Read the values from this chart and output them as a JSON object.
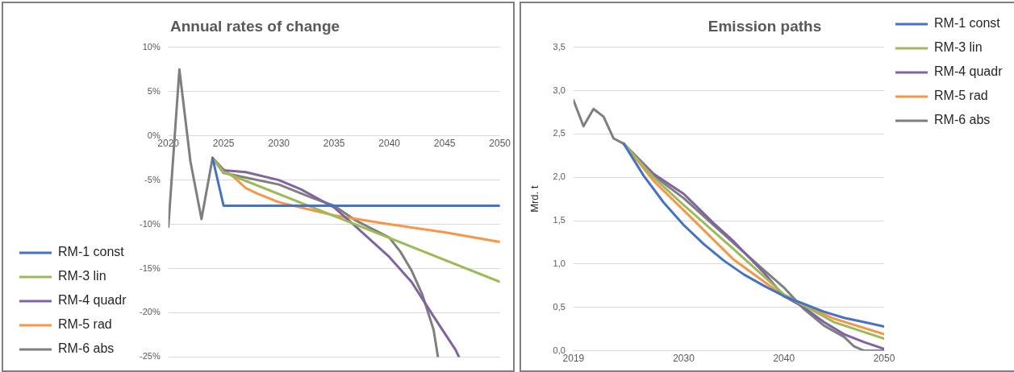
{
  "chart_data": [
    {
      "type": "line",
      "title": "Annual rates of change",
      "xlim": [
        2020,
        2050
      ],
      "xticks": [
        2020,
        2025,
        2030,
        2035,
        2040,
        2045,
        2050
      ],
      "ylim": [
        -25,
        10
      ],
      "yticks": [
        {
          "value": -25,
          "label": "-25%"
        },
        {
          "value": -20,
          "label": "-20%"
        },
        {
          "value": -15,
          "label": "-15%"
        },
        {
          "value": -10,
          "label": "-10%"
        },
        {
          "value": -5,
          "label": "-5%"
        },
        {
          "value": 0,
          "label": "0%"
        },
        {
          "value": 5,
          "label": "5%"
        },
        {
          "value": 10,
          "label": "10%"
        }
      ],
      "grid": "y",
      "legend": "bottom left",
      "marker": "none",
      "line_style": "solid",
      "series": [
        {
          "name": "RM-1 const",
          "color": "#4472c4",
          "x": [
            2024,
            2025,
            2030,
            2035,
            2040,
            2045,
            2050
          ],
          "values": [
            -2.5,
            -7.9,
            -7.9,
            -7.9,
            -7.9,
            -7.9,
            -7.9
          ]
        },
        {
          "name": "RM-3 lin",
          "color": "#9bbb59",
          "x": [
            2024,
            2025,
            2050
          ],
          "values": [
            -2.5,
            -4.1,
            -16.5
          ]
        },
        {
          "name": "RM-4 quadr",
          "color": "#8064a2",
          "x": [
            2024,
            2025,
            2027,
            2030,
            2032,
            2035,
            2037,
            2040,
            2042,
            2044,
            2046,
            2046.3
          ],
          "values": [
            -2.5,
            -3.9,
            -4.1,
            -5.0,
            -6.05,
            -8.1,
            -10.3,
            -13.7,
            -16.5,
            -20.4,
            -24.2,
            -25
          ]
        },
        {
          "name": "RM-5 rad",
          "color": "#f79646",
          "x": [
            2024,
            2025,
            2026,
            2027,
            2028,
            2030,
            2035,
            2040,
            2045,
            2050
          ],
          "values": [
            -2.5,
            -3.8,
            -4.75,
            -5.9,
            -6.5,
            -7.5,
            -9.0,
            -10.0,
            -10.9,
            -12.0
          ]
        },
        {
          "name": "RM-6 abs",
          "color": "#7f7f7f",
          "x": [
            2020,
            2021,
            2022,
            2023,
            2024,
            2025,
            2030,
            2033,
            2035,
            2037,
            2040,
            2041,
            2042,
            2043,
            2044,
            2044.4
          ],
          "values": [
            -10.3,
            7.5,
            -2.9,
            -9.4,
            -2.5,
            -4.2,
            -5.5,
            -7.0,
            -7.9,
            -9.6,
            -11.5,
            -13.1,
            -15.2,
            -18.0,
            -21.9,
            -25
          ]
        }
      ]
    },
    {
      "type": "line",
      "title": "Emission paths",
      "ylabel": "Mrd. t",
      "xlim": [
        2019,
        2050
      ],
      "xticks": [
        2019,
        2030,
        2040,
        2050
      ],
      "ylim": [
        0,
        3.5
      ],
      "yticks": [
        {
          "value": 0,
          "label": "0,0"
        },
        {
          "value": 0.5,
          "label": "0,5"
        },
        {
          "value": 1,
          "label": "1,0"
        },
        {
          "value": 1.5,
          "label": "1,5"
        },
        {
          "value": 2,
          "label": "2,0"
        },
        {
          "value": 2.5,
          "label": "2,5"
        },
        {
          "value": 3,
          "label": "3,0"
        },
        {
          "value": 3.5,
          "label": "3,5"
        }
      ],
      "grid": "y",
      "legend": "top right",
      "marker": "none",
      "line_style": "solid",
      "series": [
        {
          "name": "RM-1 const",
          "color": "#4472c4",
          "x": [
            2024,
            2026,
            2028,
            2030,
            2032,
            2034,
            2036,
            2038,
            2040,
            2042,
            2044,
            2046,
            2048,
            2050
          ],
          "values": [
            2.39,
            2.02,
            1.71,
            1.45,
            1.23,
            1.04,
            0.88,
            0.75,
            0.63,
            0.54,
            0.45,
            0.38,
            0.33,
            0.28
          ]
        },
        {
          "name": "RM-3 lin",
          "color": "#9bbb59",
          "x": [
            2024,
            2027,
            2030,
            2035,
            2040,
            2045,
            2050
          ],
          "values": [
            2.39,
            2.0,
            1.68,
            1.17,
            0.65,
            0.33,
            0.14
          ]
        },
        {
          "name": "RM-4 quadr",
          "color": "#8064a2",
          "x": [
            2024,
            2027,
            2030,
            2033,
            2035,
            2038,
            2040,
            2042,
            2044,
            2046,
            2048,
            2050
          ],
          "values": [
            2.39,
            2.04,
            1.81,
            1.47,
            1.26,
            0.9,
            0.63,
            0.5,
            0.33,
            0.19,
            0.1,
            0.02
          ]
        },
        {
          "name": "RM-5 rad",
          "color": "#f79646",
          "x": [
            2024,
            2027,
            2030,
            2035,
            2040,
            2045,
            2050
          ],
          "values": [
            2.39,
            1.96,
            1.62,
            1.05,
            0.63,
            0.37,
            0.19
          ]
        },
        {
          "name": "RM-6 abs",
          "color": "#7f7f7f",
          "x": [
            2019,
            2020,
            2021,
            2022,
            2023,
            2024,
            2027,
            2030,
            2035,
            2038,
            2040,
            2042,
            2044,
            2046,
            2047,
            2048,
            2050
          ],
          "values": [
            2.89,
            2.59,
            2.79,
            2.7,
            2.45,
            2.39,
            2.02,
            1.76,
            1.24,
            0.93,
            0.73,
            0.48,
            0.29,
            0.16,
            0.05,
            0,
            0
          ]
        }
      ]
    }
  ]
}
